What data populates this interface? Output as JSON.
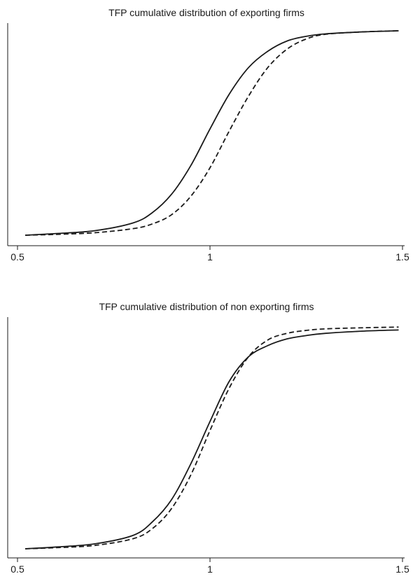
{
  "colors": {
    "line": "#1a1a1a",
    "background": "#ffffff"
  },
  "chart_data": [
    {
      "type": "line",
      "title": "TFP cumulative distribution of exporting firms",
      "xlabel": "",
      "ylabel": "",
      "xlim": [
        0.5,
        1.5
      ],
      "ylim": [
        0,
        1
      ],
      "x_ticks": [
        0.5,
        1,
        1.5
      ],
      "x_tick_labels": [
        "0.5",
        "1",
        "1.5"
      ],
      "grid": false,
      "legend": "none",
      "series": [
        {
          "style": "solid",
          "x": [
            0.52,
            0.6,
            0.7,
            0.8,
            0.85,
            0.9,
            0.95,
            1.0,
            1.05,
            1.1,
            1.15,
            1.2,
            1.25,
            1.3,
            1.4,
            1.49
          ],
          "y": [
            0.0,
            0.008,
            0.022,
            0.06,
            0.11,
            0.2,
            0.34,
            0.52,
            0.69,
            0.82,
            0.9,
            0.95,
            0.973,
            0.985,
            0.995,
            1.0
          ]
        },
        {
          "style": "dashed",
          "x": [
            0.52,
            0.6,
            0.7,
            0.8,
            0.85,
            0.9,
            0.95,
            1.0,
            1.05,
            1.1,
            1.15,
            1.2,
            1.25,
            1.3,
            1.4,
            1.49
          ],
          "y": [
            0.0,
            0.004,
            0.012,
            0.032,
            0.055,
            0.1,
            0.19,
            0.33,
            0.51,
            0.68,
            0.82,
            0.91,
            0.96,
            0.983,
            0.995,
            1.0
          ]
        }
      ]
    },
    {
      "type": "line",
      "title": "TFP cumulative distribution of non exporting firms",
      "xlabel": "",
      "ylabel": "",
      "xlim": [
        0.5,
        1.5
      ],
      "ylim": [
        0,
        1
      ],
      "x_ticks": [
        0.5,
        1,
        1.5
      ],
      "x_tick_labels": [
        "0.5",
        "1",
        "1.5"
      ],
      "grid": false,
      "legend": "none",
      "series": [
        {
          "style": "solid",
          "x": [
            0.52,
            0.6,
            0.7,
            0.8,
            0.85,
            0.9,
            0.95,
            1.0,
            1.05,
            1.1,
            1.15,
            1.2,
            1.25,
            1.3,
            1.4,
            1.49
          ],
          "y": [
            0.0,
            0.008,
            0.022,
            0.06,
            0.12,
            0.22,
            0.38,
            0.57,
            0.75,
            0.86,
            0.91,
            0.94,
            0.955,
            0.965,
            0.975,
            0.98
          ]
        },
        {
          "style": "dashed",
          "x": [
            0.52,
            0.6,
            0.7,
            0.8,
            0.85,
            0.9,
            0.95,
            1.0,
            1.05,
            1.1,
            1.15,
            1.2,
            1.25,
            1.3,
            1.4,
            1.49
          ],
          "y": [
            0.0,
            0.005,
            0.015,
            0.045,
            0.09,
            0.18,
            0.33,
            0.53,
            0.72,
            0.86,
            0.935,
            0.965,
            0.978,
            0.985,
            0.99,
            0.993
          ]
        }
      ]
    }
  ]
}
